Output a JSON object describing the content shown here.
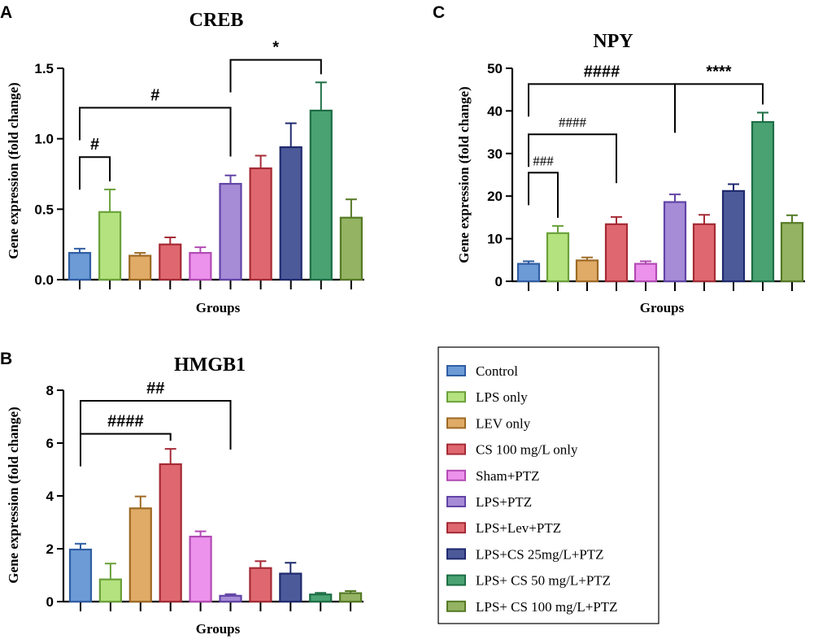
{
  "panels": [
    "A",
    "B",
    "C"
  ],
  "legend": {
    "items": [
      {
        "label": "Control",
        "fill": "#6d9bd6",
        "stroke": "#2f5da3"
      },
      {
        "label": "LPS only",
        "fill": "#b4e27e",
        "stroke": "#6aa13a"
      },
      {
        "label": "LEV only",
        "fill": "#dfab67",
        "stroke": "#9e6a25"
      },
      {
        "label": "CS 100 mg/L only",
        "fill": "#df6870",
        "stroke": "#a52a35"
      },
      {
        "label": "Sham+PTZ",
        "fill": "#ec92ec",
        "stroke": "#b24bb3"
      },
      {
        "label": "LPS+PTZ",
        "fill": "#a68bd6",
        "stroke": "#6244a6"
      },
      {
        "label": "LPS+Lev+PTZ",
        "fill": "#df6870",
        "stroke": "#a52a35"
      },
      {
        "label": "LPS+CS 25mg/L+PTZ",
        "fill": "#4d5a99",
        "stroke": "#1f2a6e"
      },
      {
        "label": "LPS+ CS 50 mg/L+PTZ",
        "fill": "#4aa272",
        "stroke": "#1e6e45"
      },
      {
        "label": "LPS+ CS 100 mg/L+PTZ",
        "fill": "#94b363",
        "stroke": "#557a26"
      }
    ]
  },
  "chart_data": [
    {
      "panel": "A",
      "type": "bar",
      "title": "CREB",
      "xlabel": "Groups",
      "ylabel": "Gene expression (fold change)",
      "ylim": [
        0,
        1.5
      ],
      "yticks": [
        0.0,
        0.5,
        1.0,
        1.5
      ],
      "ytick_labels": [
        "0.0",
        "0.5",
        "1.0",
        "1.5"
      ],
      "categories": [
        "Control",
        "LPS only",
        "LEV only",
        "CS 100 mg/L only",
        "Sham+PTZ",
        "LPS+PTZ",
        "LPS+Lev+PTZ",
        "LPS+CS 25mg/L+PTZ",
        "LPS+ CS 50 mg/L+PTZ",
        "LPS+ CS 100 mg/L+PTZ"
      ],
      "values": [
        0.19,
        0.48,
        0.17,
        0.25,
        0.19,
        0.68,
        0.79,
        0.94,
        1.2,
        0.44
      ],
      "errors": [
        0.03,
        0.16,
        0.02,
        0.05,
        0.04,
        0.06,
        0.09,
        0.17,
        0.2,
        0.13
      ],
      "annotations": [
        {
          "label": "#",
          "from": 0,
          "to": 1,
          "level": 0.87
        },
        {
          "label": "#",
          "from": 0,
          "to": 5,
          "level": 1.22
        },
        {
          "label": "*",
          "from": 5,
          "to": 8,
          "level": 1.56
        }
      ]
    },
    {
      "panel": "B",
      "type": "bar",
      "title": "HMGB1",
      "xlabel": "Groups",
      "ylabel": "Gene expression (fold change)",
      "ylim": [
        0,
        8
      ],
      "yticks": [
        0,
        2,
        4,
        6,
        8
      ],
      "ytick_labels": [
        "0",
        "2",
        "4",
        "6",
        "8"
      ],
      "categories": [
        "Control",
        "LPS only",
        "LEV only",
        "CS 100 mg/L only",
        "Sham+PTZ",
        "LPS+PTZ",
        "LPS+Lev+PTZ",
        "LPS+CS 25mg/L+PTZ",
        "LPS+ CS 50 mg/L+PTZ",
        "LPS+ CS 100 mg/L+PTZ"
      ],
      "values": [
        1.97,
        0.84,
        3.53,
        5.2,
        2.46,
        0.22,
        1.27,
        1.06,
        0.27,
        0.32
      ],
      "errors": [
        0.22,
        0.6,
        0.45,
        0.58,
        0.2,
        0.06,
        0.26,
        0.41,
        0.06,
        0.08
      ],
      "annotations": [
        {
          "label": "####",
          "from": 0,
          "to": 3,
          "level": 6.35
        },
        {
          "label": "##",
          "from": 0,
          "to": 5,
          "level": 7.6
        }
      ]
    },
    {
      "panel": "C",
      "type": "bar",
      "title": "NPY",
      "xlabel": "Groups",
      "ylabel": "Gene expression (fold change)",
      "ylim": [
        0,
        50
      ],
      "yticks": [
        0,
        10,
        20,
        30,
        40,
        50
      ],
      "ytick_labels": [
        "0",
        "10",
        "20",
        "30",
        "40",
        "50"
      ],
      "categories": [
        "Control",
        "LPS only",
        "LEV only",
        "CS 100 mg/L only",
        "Sham+PTZ",
        "LPS+PTZ",
        "LPS+Lev+PTZ",
        "LPS+CS 25mg/L+PTZ",
        "LPS+ CS 50 mg/L+PTZ",
        "LPS+ CS 100 mg/L+PTZ"
      ],
      "values": [
        4.1,
        11.3,
        4.9,
        13.4,
        4.1,
        18.6,
        13.4,
        21.2,
        37.4,
        13.7
      ],
      "errors": [
        0.6,
        1.7,
        0.7,
        1.7,
        0.6,
        1.8,
        2.2,
        1.6,
        2.2,
        1.8
      ],
      "annotations": [
        {
          "label": "###",
          "from": 0,
          "to": 1,
          "level": 25.5
        },
        {
          "label": "####",
          "from": 0,
          "to": 3,
          "level": 34.5
        },
        {
          "label": "####",
          "from": 0,
          "to": 5,
          "level": 46.3
        },
        {
          "label": "****",
          "from": 5,
          "to": 8,
          "level": 46.3
        }
      ]
    }
  ]
}
